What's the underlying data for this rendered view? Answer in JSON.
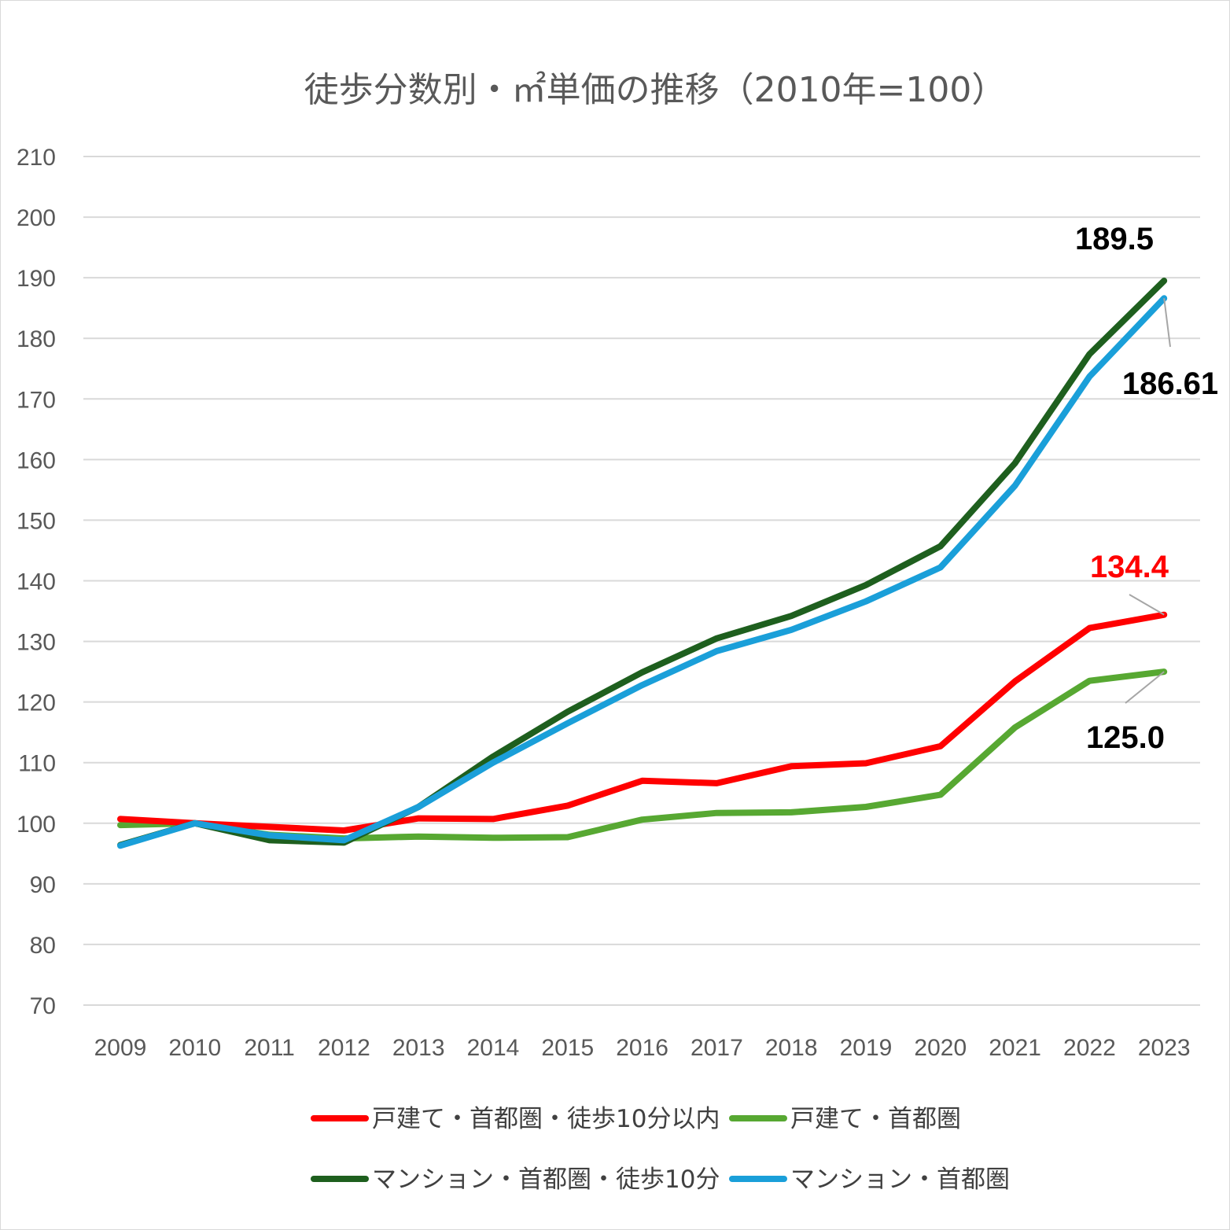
{
  "chart_data": {
    "type": "line",
    "title": "徒歩分数別・㎡単価の推移（2010年=100）",
    "categories": [
      "2009",
      "2010",
      "2011",
      "2012",
      "2013",
      "2014",
      "2015",
      "2016",
      "2017",
      "2018",
      "2019",
      "2020",
      "2021",
      "2022",
      "2023"
    ],
    "ylim": [
      70,
      210
    ],
    "yticks": [
      70,
      80,
      90,
      100,
      110,
      120,
      130,
      140,
      150,
      160,
      170,
      180,
      190,
      200,
      210
    ],
    "grid": true,
    "legend_position": "bottom",
    "series": [
      {
        "name": "戸建て・首都圏・徒歩10分以内",
        "color": "#ff0000",
        "values": [
          100.7,
          100.0,
          99.4,
          98.8,
          100.8,
          100.7,
          102.9,
          107.0,
          106.6,
          109.4,
          109.9,
          112.7,
          123.4,
          132.2,
          134.4
        ],
        "end_label": "134.4",
        "end_label_color": "#ff0000"
      },
      {
        "name": "戸建て・首都圏",
        "color": "#57a832",
        "values": [
          99.7,
          100.0,
          98.1,
          97.5,
          97.8,
          97.6,
          97.7,
          100.6,
          101.7,
          101.8,
          102.7,
          104.7,
          115.8,
          123.5,
          125.0
        ],
        "end_label": "125.0",
        "end_label_color": "#000000"
      },
      {
        "name": "マンション・首都圏・徒歩10分",
        "color": "#1e5f1e",
        "values": [
          96.4,
          100.0,
          97.2,
          96.8,
          102.7,
          111.0,
          118.4,
          124.9,
          130.5,
          134.2,
          139.3,
          145.7,
          159.4,
          177.4,
          189.5
        ],
        "end_label": "189.5",
        "end_label_color": "#000000"
      },
      {
        "name": "マンション・首都圏",
        "color": "#1a9fd9",
        "values": [
          96.3,
          100.0,
          98.0,
          97.2,
          102.7,
          110.0,
          116.5,
          122.8,
          128.4,
          131.9,
          136.6,
          142.2,
          155.7,
          173.7,
          186.61
        ],
        "end_label": "186.61",
        "end_label_color": "#000000"
      }
    ]
  }
}
